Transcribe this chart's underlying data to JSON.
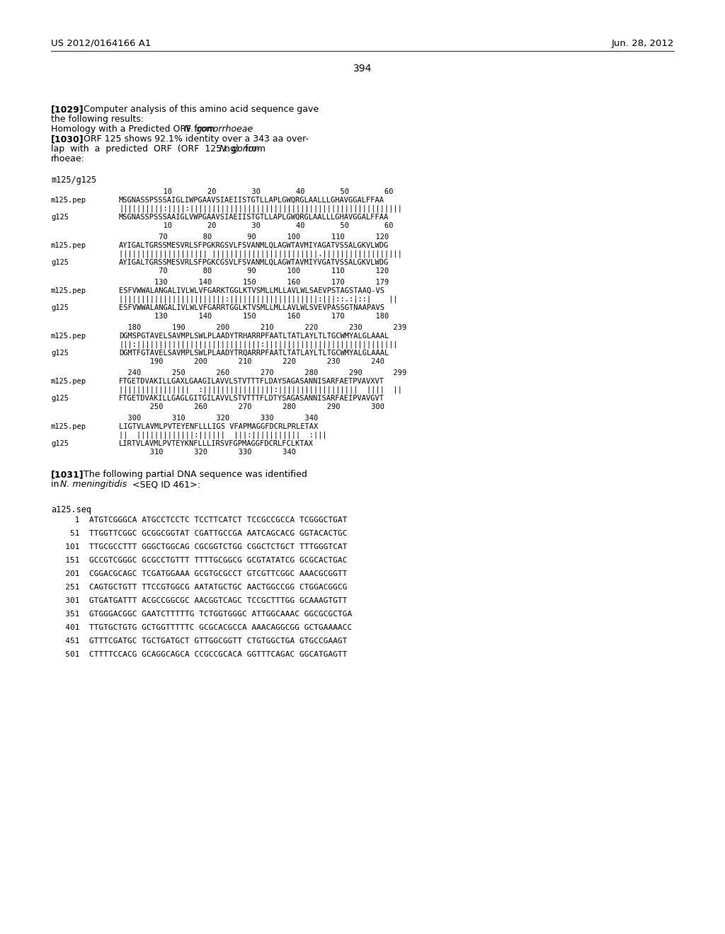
{
  "header_left": "US 2012/0164166 A1",
  "header_right": "Jun. 28, 2012",
  "page_number": "394",
  "background_color": "#ffffff",
  "text_color": "#000000",
  "alignment_label": "m125/g125",
  "dna_label": "a125.seq",
  "dna_sequences": [
    "     1  ATGTCGGGCA ATGCCTCCTC TCCTTCATCT TCCGCCGCCA TCGGGCTGAT",
    "    51  TTGGTTCGGC GCGGCGGTAT CGATTGCCGA AATCAGCACG GGTACACTGC",
    "   101  TTGCGCCTTT GGGCTGGCAG CGCGGTCTGG CGGCTCTGCT TTTGGGTCAT",
    "   151  GCCGTCGGGC GCGCCTGTTT TTTTGCGGCG GCGTATATCG GCGCACTGAC",
    "   201  CGGACGCAGC TCGATGGAAA GCGTGCGCCT GTCGTTCGGC AAACGCGGTT",
    "   251  CAGTGCTGTT TTCCGTGGCG AATATGCTGC AACTGGCCGG CTGGACGGCG",
    "   301  GTGATGATTT ACGCCGGCGC AACGGTCAGC TCCGCTTTGG GCAAAGTGTT",
    "   351  GTGGGACGGC GAATCTTTTTG TCTGGTGGGC ATTGGCAAAC GGCGCGCTGA",
    "   401  TTGTGCTGTG GCTGGTTTTTC GCGCACGCCA AAACAGGCGG GCTGAAAACC",
    "   451  GTTTCGATGC TGCTGATGCT GTTGGCGGTT CTGTGGCTGA GTGCCGAAGT",
    "   501  CTTTTCCACG GCAGGCAGCA CCGCCGCACA GGTTTCAGAC GGCATGAGTT"
  ],
  "block_data": [
    {
      "n1": "          10        20        30        40        50        60",
      "l1": "m125.pep",
      "s1": "MSGNASSPSSSAIGLIWPGAAVSIAEIISTGTLLAPLGWQRGLAALLLGHAVGGALFFAA",
      "m": "||||||||||:||||:||||||||||||||||||||||||||||||||||||||||||||||||",
      "l2": "g125",
      "s2": "MSGNASSPSSSAAIGLVWPGAAVSIAEIISTGTLLAPLGWQRGLAALLLGHAVGGALFFAA",
      "n2": "          10        20        30        40        50        60"
    },
    {
      "n1": "         70        80        90       100       110       120",
      "l1": "m125.pep",
      "s1": "AYIGALTGRSSMESVRLSFPGKRGSVLFSVANMLQLAGWTAVMIYAGATVSSALGKVLWDG",
      "m": "|||||||||||||||||||| ||||||||||||||||||||||||.||||||||||||||||||",
      "l2": "g125",
      "s2": "AYIGALTGRSSMESVRLSFPGKCGSVLFSVANMLQLAGWTAVMIYVGATVSSALGKVLWDG",
      "n2": "         70        80        90       100       110       120"
    },
    {
      "n1": "        130       140       150       160       170       179",
      "l1": "m125.pep",
      "s1": "ESFVWWALANGALIVLWLVFGARKTGGLKTVSMLLMLLAVLWLSAEVPSTAGSTAAQ-VS",
      "m": "||||||||||||||||||||||||:||||||||||||||||||||:|||::.:|::|    ||",
      "l2": "g125",
      "s2": "ESFVWWALANGALIVLWLVFGARRTGGLKTVSMLLMLLAVLWLSVEVPASSGTNAAPAVS",
      "n2": "        130       140       150       160       170       180"
    },
    {
      "n1": "  180       190       200       210       220       230       239",
      "l1": "m125.pep",
      "s1": "DGMSPGTAVELSAVMPLSWLPLAADYTRHARRPFAATLTATLAYLTLTGCWMYALGLAAAL",
      "m": "|||:||||||||||||||||||||||||||||:||||||||||||||||||||||||||||||",
      "l2": "g125",
      "s2": "DGMTFGTAVELSAVMPLSWLPLAADYTRQARRPFAATLTATLAYLTLTGCWMYALGLAAAL",
      "n2": "       190       200       210       220       230       240"
    },
    {
      "n1": "  240       250       260       270       280       290       299",
      "l1": "m125.pep",
      "s1": "FTGETDVAKILLGAXLGAAGILAVVLSTVTTTFLDAYSAGASANNISARFAETPVAVXVT",
      "m": "||||||||||||||||  :||||||||||||||||:||||||||||||||||||  ||||  ||",
      "l2": "g125",
      "s2": "FTGETDVAKILLGAGLGITGILAVVLSTVTTTFLDTYSAGASANNISARFAEIPVAVGVT",
      "n2": "       250       260       270       280       290       300"
    },
    {
      "n1": "  300       310       320       330       340",
      "l1": "m125.pep",
      "s1": "LIGTVLAVMLPVTEYENFLLLIGS VFAPMAGGFDCRLPRLETAX",
      "m": "||  |||||||||||||:||||||  |||:|||||||||||  :|||",
      "l2": "g125",
      "s2": "LIRTVLAVMLPVTEYKNFLLLIRSVFGPMAGGFDCRLFCLKTAX",
      "n2": "       310       320       330       340"
    }
  ]
}
